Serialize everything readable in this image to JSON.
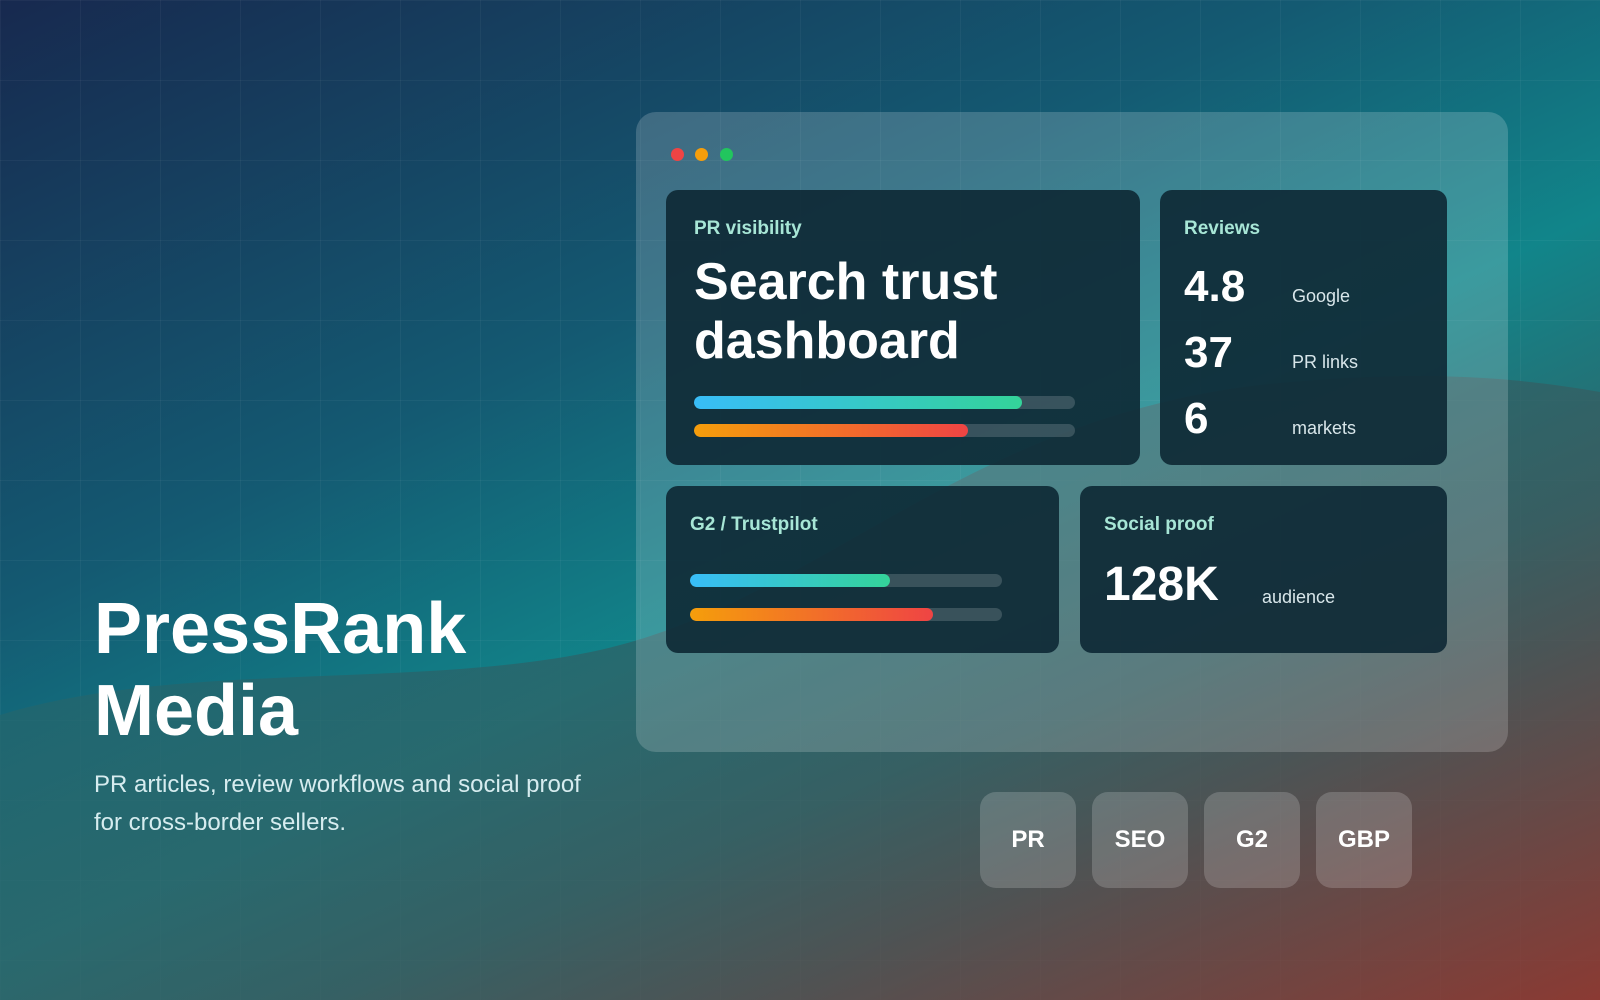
{
  "hero": {
    "title_lines": [
      "PressRank",
      "Media"
    ],
    "subtitle_lines": [
      "PR articles, review workflows and social proof",
      "for cross-border sellers."
    ]
  },
  "cards": [
    {
      "label": "PR visibility",
      "heading_lines": [
        "Search trust",
        "dashboard"
      ],
      "progress": [
        86,
        72
      ]
    },
    {
      "label": "Reviews",
      "stats": [
        {
          "value": "4.8",
          "label": "Google"
        },
        {
          "value": "37",
          "label": "PR links"
        },
        {
          "value": "6",
          "label": "markets"
        }
      ]
    },
    {
      "label": "G2 / Trustpilot",
      "progress": [
        64,
        78
      ]
    },
    {
      "label": "Social proof",
      "stats": [
        {
          "value": "128K",
          "label": "audience"
        }
      ]
    }
  ],
  "tags": [
    "PR",
    "SEO",
    "G2",
    "GBP"
  ]
}
